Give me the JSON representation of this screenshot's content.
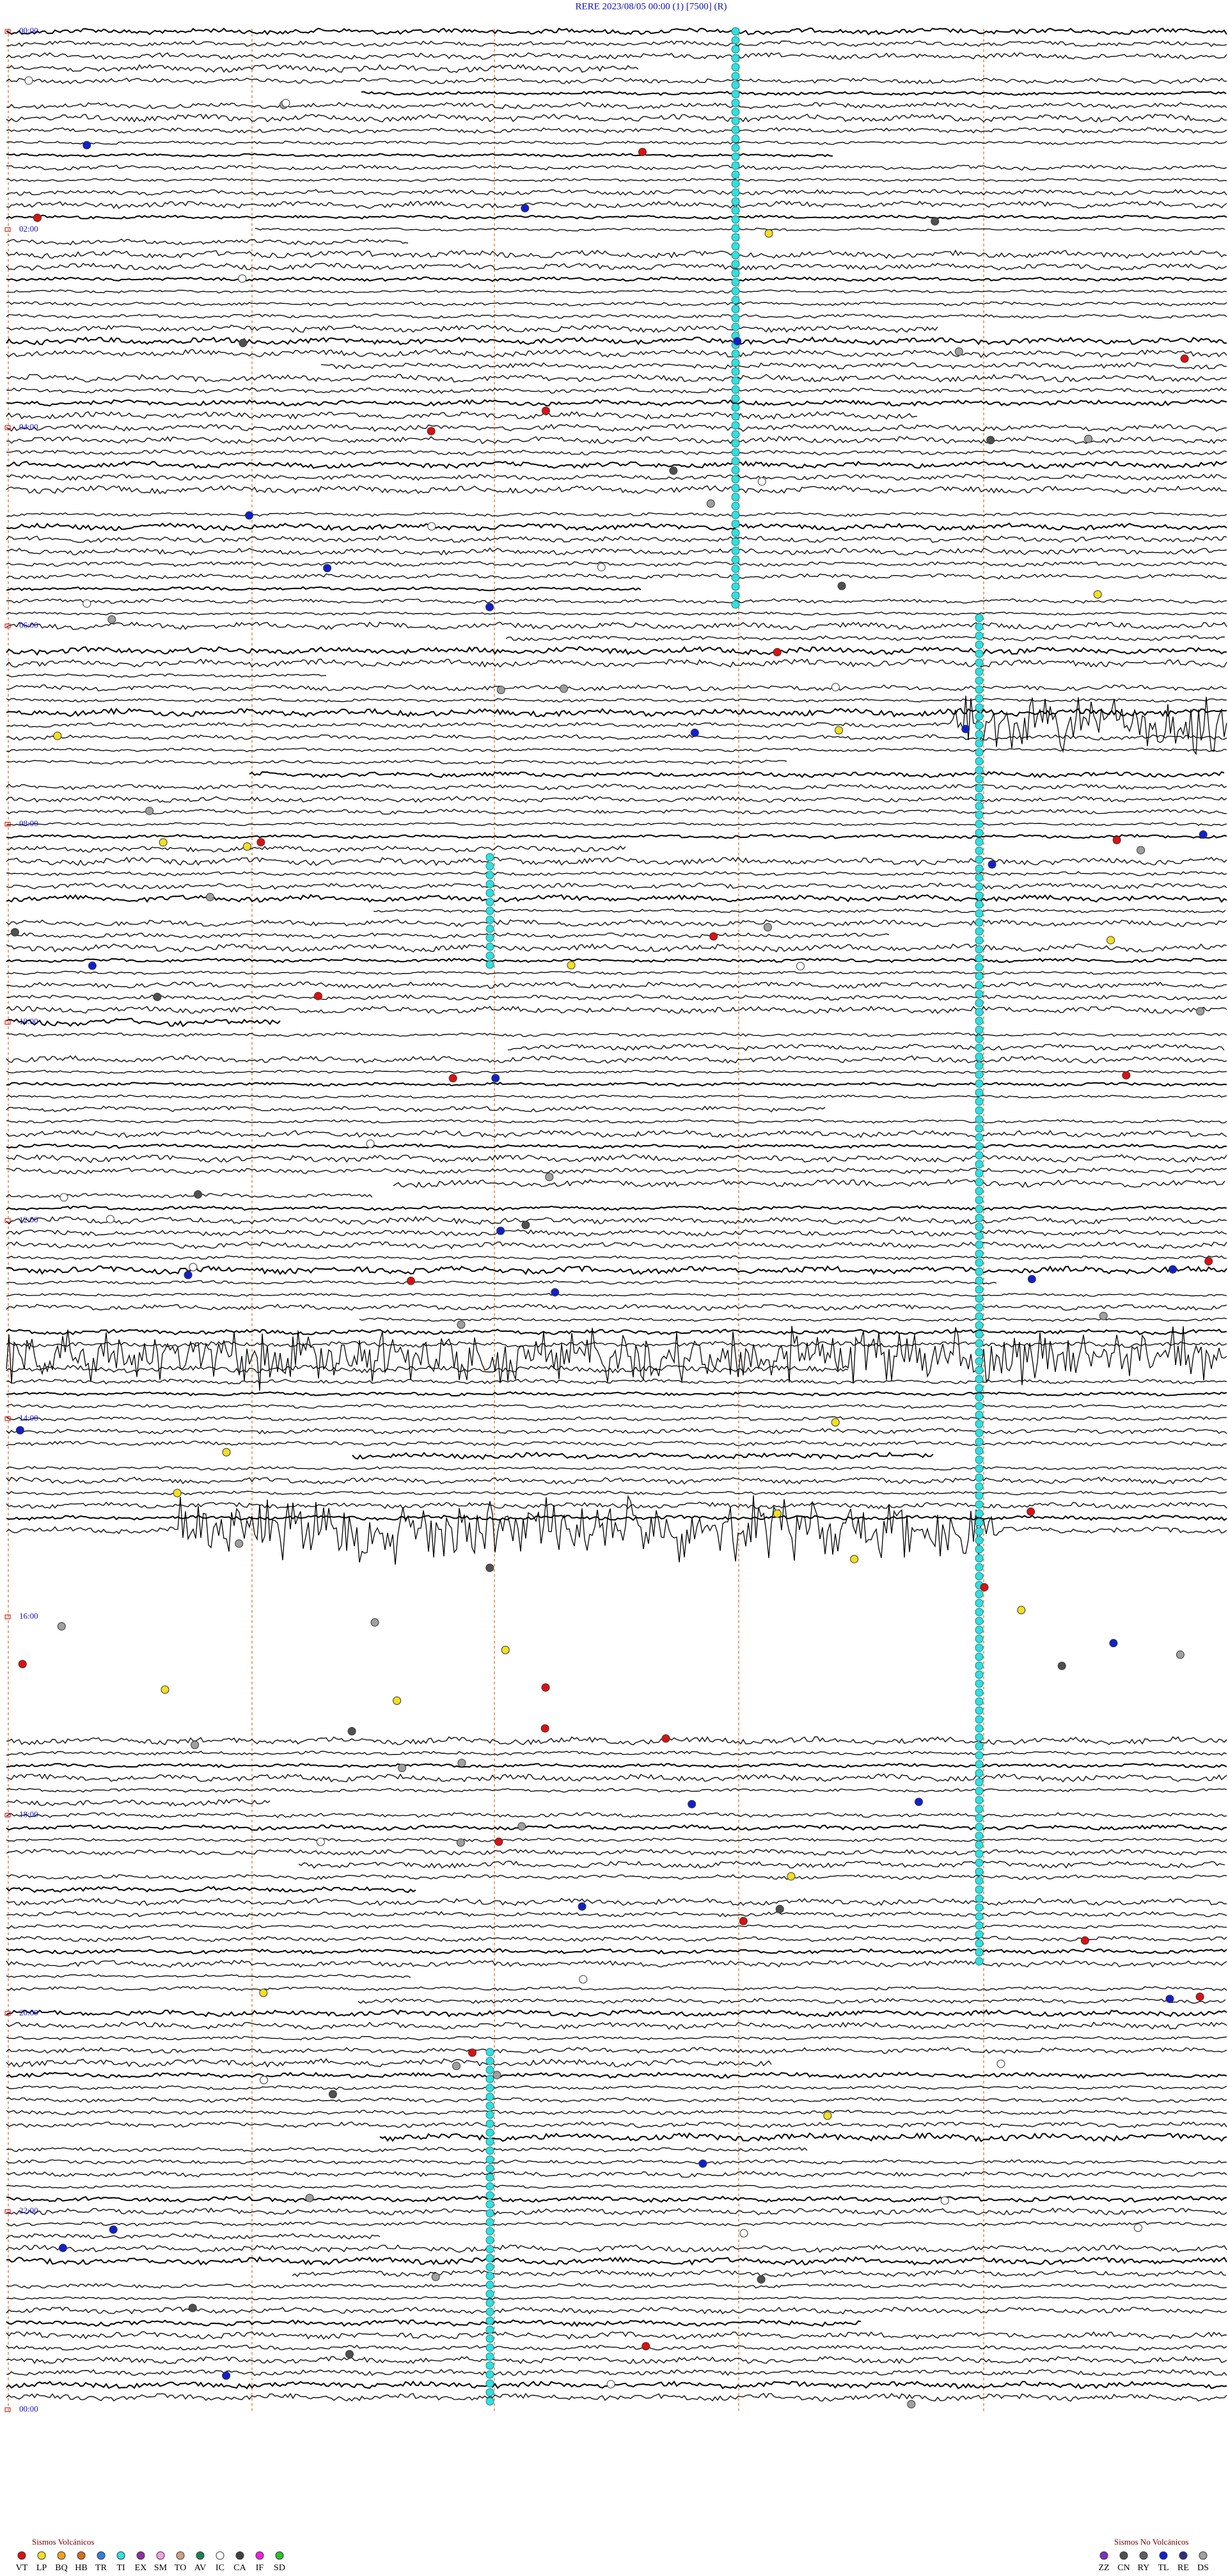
{
  "header": {
    "title": "RERE     2023/08/05 00:00     (1)     [7500]     (R)"
  },
  "time_labels": [
    "00:00",
    "02:00",
    "04:00",
    "06:00",
    "08:00",
    "10:00",
    "12:00",
    "14:00",
    "16:00",
    "18:00",
    "20:00",
    "22:00",
    "00:00"
  ],
  "legend": {
    "volcanic": {
      "title": "Sismos Volcánicos",
      "items": [
        {
          "code": "VT",
          "color": "#e01010"
        },
        {
          "code": "LP",
          "color": "#f2e020"
        },
        {
          "code": "BQ",
          "color": "#f0a020"
        },
        {
          "code": "HB",
          "color": "#d07020"
        },
        {
          "code": "TR",
          "color": "#3080e0"
        },
        {
          "code": "TI",
          "color": "#30e0e0"
        },
        {
          "code": "EX",
          "color": "#9030a0"
        },
        {
          "code": "SM",
          "color": "#f0a0e0"
        },
        {
          "code": "TO",
          "color": "#d0a080"
        },
        {
          "code": "AV",
          "color": "#208050"
        },
        {
          "code": "IC",
          "color": "#ffffff"
        },
        {
          "code": "CA",
          "color": "#404040"
        },
        {
          "code": "IF",
          "color": "#f020e0"
        },
        {
          "code": "SD",
          "color": "#30c030"
        }
      ]
    },
    "non_volcanic": {
      "title": "Sismos No Volcánicos",
      "items": [
        {
          "code": "ZZ",
          "color": "#8030c0"
        },
        {
          "code": "CN",
          "color": "#505050"
        },
        {
          "code": "RY",
          "color": "#606060"
        },
        {
          "code": "TL",
          "color": "#1020d0"
        },
        {
          "code": "RE",
          "color": "#303080"
        },
        {
          "code": "DS",
          "color": "#a0a0a0"
        }
      ]
    }
  }
}
